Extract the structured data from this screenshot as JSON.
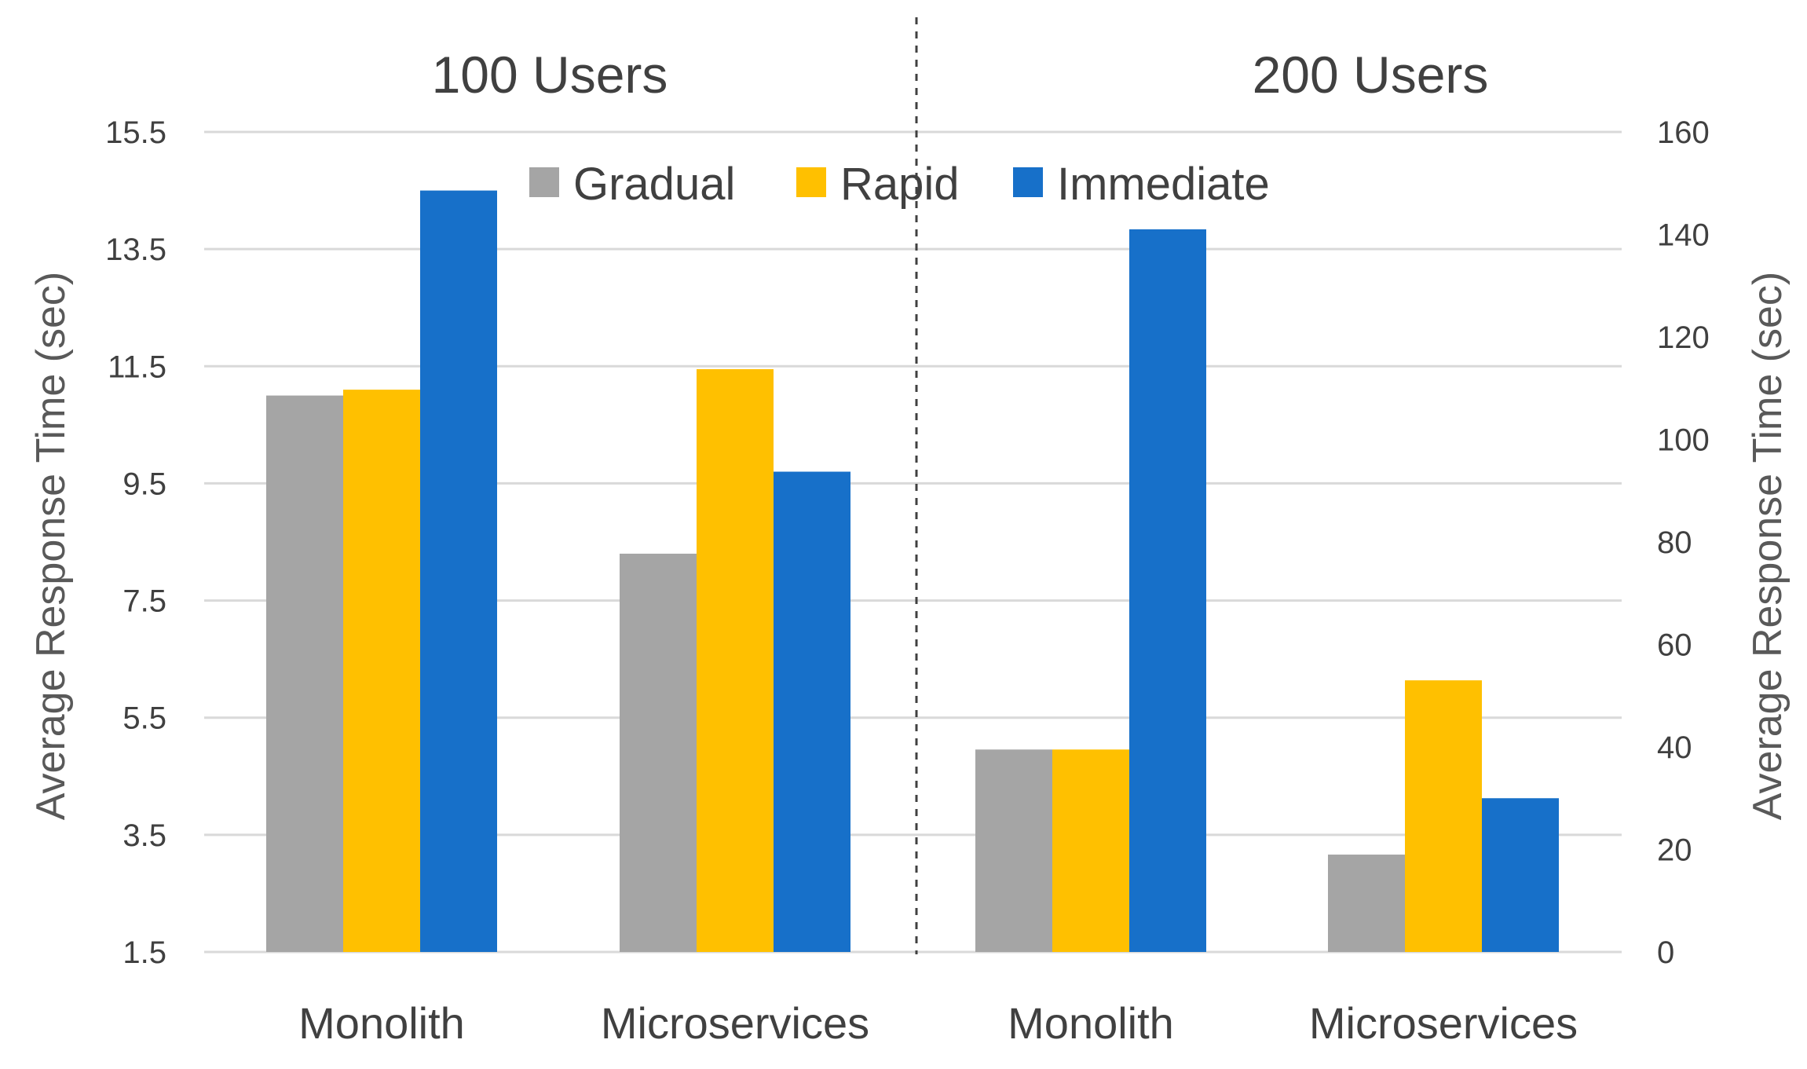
{
  "chart_data": {
    "type": "bar",
    "groups": [
      {
        "title": "100 Users",
        "axis": "left",
        "categories": [
          "Monolith",
          "Microservices"
        ],
        "series": [
          {
            "name": "Gradual",
            "values": [
              11.0,
              8.3
            ]
          },
          {
            "name": "Rapid",
            "values": [
              11.1,
              11.45
            ]
          },
          {
            "name": "Immediate",
            "values": [
              14.5,
              9.7
            ]
          }
        ]
      },
      {
        "title": "200 Users",
        "axis": "right",
        "categories": [
          "Monolith",
          "Microservices"
        ],
        "series": [
          {
            "name": "Gradual",
            "values": [
              39.5,
              19
            ]
          },
          {
            "name": "Rapid",
            "values": [
              39.5,
              53
            ]
          },
          {
            "name": "Immediate",
            "values": [
              141,
              30
            ]
          }
        ]
      }
    ],
    "legend": [
      {
        "name": "Gradual",
        "color": "#a5a5a5"
      },
      {
        "name": "Rapid",
        "color": "#ffc000"
      },
      {
        "name": "Immediate",
        "color": "#1770c9"
      }
    ],
    "y_left": {
      "label": "Average Response Time (sec)",
      "range": [
        1.5,
        15.5
      ],
      "ticks": [
        "1.5",
        "3.5",
        "5.5",
        "7.5",
        "9.5",
        "11.5",
        "13.5",
        "15.5"
      ]
    },
    "y_right": {
      "label": "Average Response Time (sec)",
      "range": [
        0,
        160
      ],
      "ticks": [
        "0",
        "20",
        "40",
        "60",
        "80",
        "100",
        "120",
        "140",
        "160"
      ]
    },
    "legend_position": "top-center"
  }
}
